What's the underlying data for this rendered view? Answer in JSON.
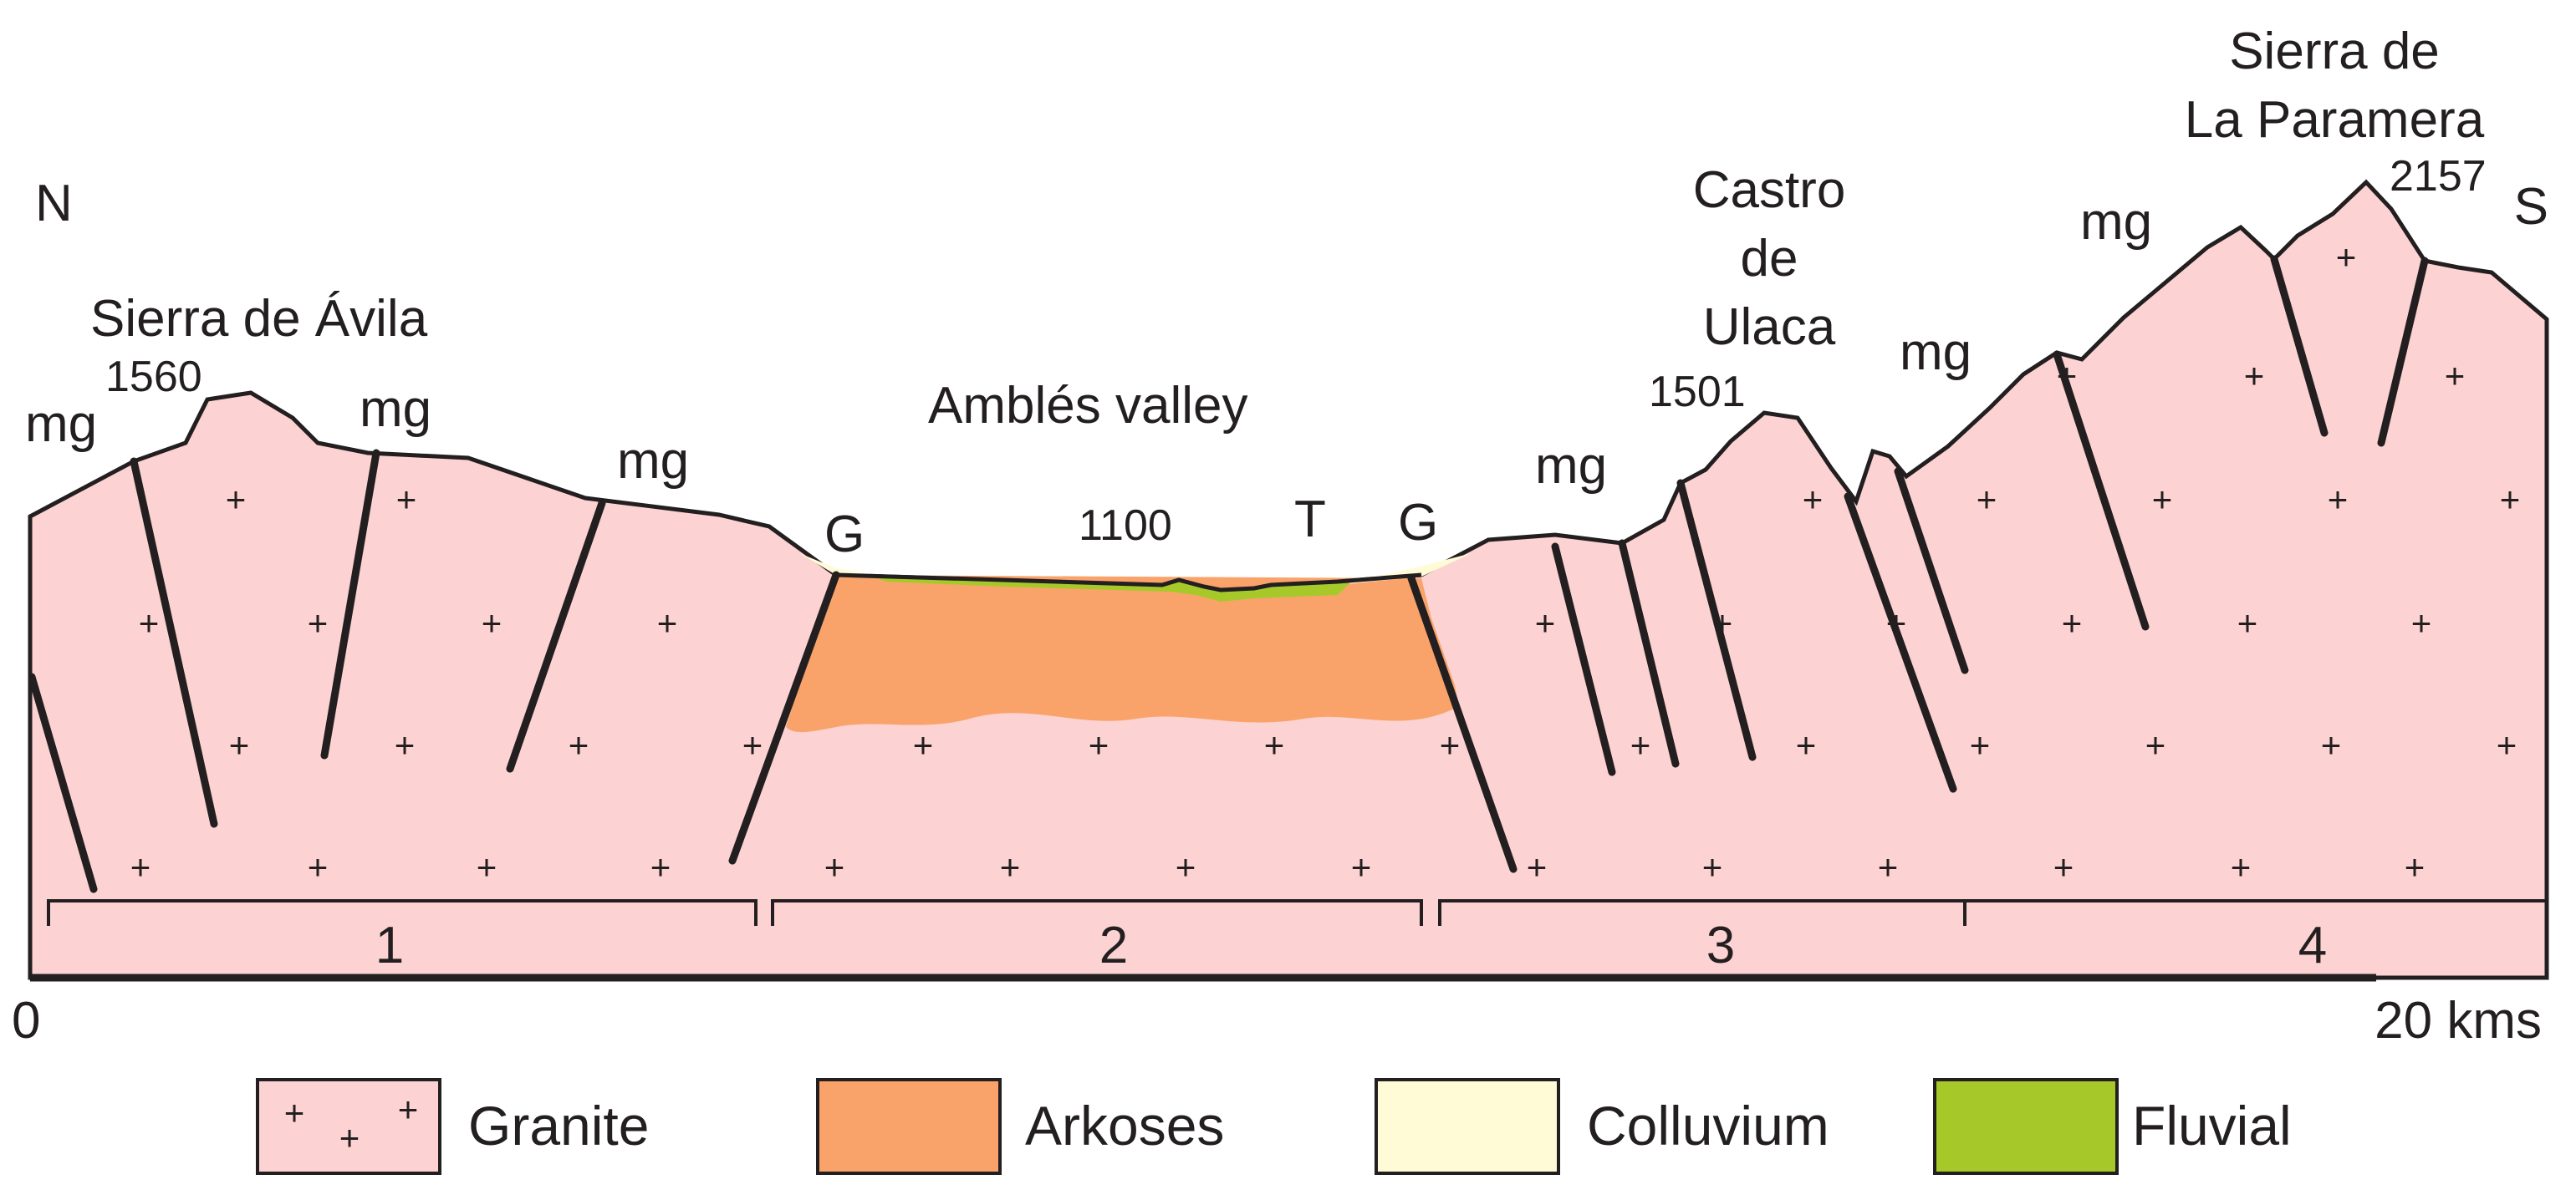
{
  "cross_section": {
    "directions": {
      "north": "N",
      "south": "S"
    },
    "places": [
      {
        "id": "sierra-de-avila",
        "lines": [
          "Sierra de Ávila"
        ]
      },
      {
        "id": "ambles-valley",
        "lines": [
          "Amblés valley"
        ]
      },
      {
        "id": "castro-de-ulaca",
        "lines": [
          "Castro",
          "de",
          "Ulaca"
        ]
      },
      {
        "id": "sierra-de-la-paramera",
        "lines": [
          "Sierra de",
          "La Paramera"
        ]
      }
    ],
    "elevations": [
      {
        "id": "avila",
        "value": "1560"
      },
      {
        "id": "valley",
        "value": "1100"
      },
      {
        "id": "ulaca",
        "value": "1501"
      },
      {
        "id": "paramera",
        "value": "2157"
      }
    ],
    "markers": {
      "mg": "mg",
      "g": "G",
      "t": "T"
    },
    "sectors": [
      "1",
      "2",
      "3",
      "4"
    ],
    "scale": {
      "start": "0",
      "end": "20 kms"
    }
  },
  "legend": [
    {
      "id": "granite",
      "label": "Granite",
      "color": "#fcd3d2",
      "pattern": "plus"
    },
    {
      "id": "arkoses",
      "label": "Arkoses",
      "color": "#f9a36a",
      "pattern": "none"
    },
    {
      "id": "colluvium",
      "label": "Colluvium",
      "color": "#fffbd6",
      "pattern": "none"
    },
    {
      "id": "fluvial",
      "label": "Fluvial",
      "color": "#a6c929",
      "pattern": "none"
    }
  ],
  "colors": {
    "granite": "#fcd3d2",
    "arkoses": "#f9a36a",
    "colluvium": "#fffbd6",
    "fluvial": "#a6c929",
    "ink": "#231f20"
  }
}
